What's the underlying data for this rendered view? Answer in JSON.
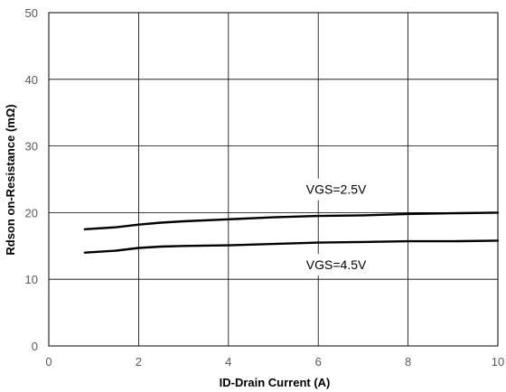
{
  "chart_data": {
    "type": "line",
    "xlabel": "ID-Drain Current (A)",
    "ylabel": "Rdson on-Resistance (mΩ)",
    "xlim": [
      0,
      10
    ],
    "ylim": [
      0,
      50
    ],
    "x_ticks": [
      0,
      2,
      4,
      6,
      8,
      10
    ],
    "y_ticks": [
      0,
      10,
      20,
      30,
      40,
      50
    ],
    "x_tick_labels": [
      "0",
      "2",
      "4",
      "6",
      "8",
      "10"
    ],
    "y_tick_labels": [
      "0",
      "10",
      "20",
      "30",
      "40",
      "50"
    ],
    "grid": true,
    "series": [
      {
        "name": "VGS=2.5V",
        "x": [
          0.8,
          1.5,
          2.0,
          2.5,
          3.0,
          4.0,
          5.0,
          6.0,
          7.0,
          8.0,
          9.0,
          10.0
        ],
        "y": [
          17.5,
          17.8,
          18.2,
          18.5,
          18.7,
          19.0,
          19.3,
          19.5,
          19.6,
          19.8,
          19.9,
          20.0
        ],
        "color": "#000000"
      },
      {
        "name": "VGS=4.5V",
        "x": [
          0.8,
          1.5,
          2.0,
          2.5,
          3.0,
          4.0,
          5.0,
          6.0,
          7.0,
          8.0,
          9.0,
          10.0
        ],
        "y": [
          14.0,
          14.3,
          14.7,
          14.9,
          15.0,
          15.1,
          15.3,
          15.5,
          15.6,
          15.7,
          15.7,
          15.8
        ],
        "color": "#000000"
      }
    ],
    "annotations": [
      {
        "text": "VGS=2.5V",
        "x": 6.4,
        "y": 22.8
      },
      {
        "text": "VGS=4.5V",
        "x": 6.4,
        "y": 11.5
      }
    ]
  }
}
